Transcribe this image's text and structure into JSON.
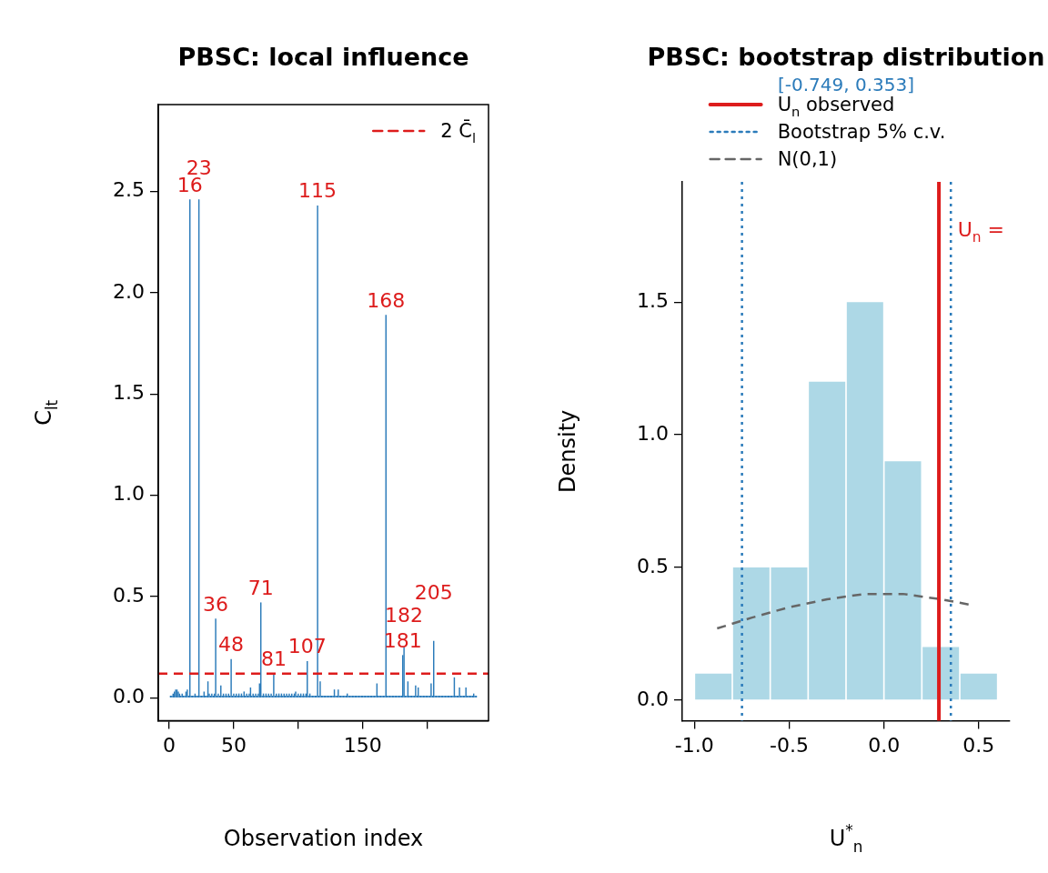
{
  "chart_data": [
    {
      "type": "bar",
      "title": "PBSC: local influence",
      "xlabel": "Observation index",
      "ylabel": "C$_{lt}$",
      "color": "#2b7bba",
      "x": [
        1,
        2,
        3,
        4,
        5,
        6,
        7,
        8,
        9,
        10,
        11,
        12,
        13,
        14,
        15,
        16,
        17,
        18,
        19,
        20,
        21,
        22,
        23,
        24,
        25,
        26,
        27,
        28,
        29,
        30,
        31,
        32,
        33,
        34,
        35,
        36,
        37,
        38,
        39,
        40,
        41,
        42,
        43,
        44,
        45,
        46,
        47,
        48,
        49,
        50,
        51,
        52,
        53,
        54,
        55,
        56,
        57,
        58,
        59,
        60,
        61,
        62,
        63,
        64,
        65,
        66,
        67,
        68,
        69,
        70,
        71,
        72,
        73,
        74,
        75,
        76,
        77,
        78,
        79,
        80,
        81,
        82,
        83,
        84,
        85,
        86,
        87,
        88,
        89,
        90,
        91,
        92,
        93,
        94,
        95,
        96,
        97,
        98,
        99,
        100,
        101,
        102,
        103,
        104,
        105,
        106,
        107,
        108,
        109,
        110,
        111,
        112,
        113,
        114,
        115,
        116,
        117,
        118,
        119,
        120,
        121,
        122,
        123,
        124,
        125,
        126,
        127,
        128,
        129,
        130,
        131,
        132,
        133,
        134,
        135,
        136,
        137,
        138,
        139,
        140,
        141,
        142,
        143,
        144,
        145,
        146,
        147,
        148,
        149,
        150,
        151,
        152,
        153,
        154,
        155,
        156,
        157,
        158,
        159,
        160,
        161,
        162,
        163,
        164,
        165,
        166,
        167,
        168,
        169,
        170,
        171,
        172,
        173,
        174,
        175,
        176,
        177,
        178,
        179,
        180,
        181,
        182,
        183,
        184,
        185,
        186,
        187,
        188,
        189,
        190,
        191,
        192,
        193,
        194,
        195,
        196,
        197,
        198,
        199,
        200,
        201,
        202,
        203,
        204,
        205,
        206,
        207,
        208,
        209,
        210,
        211,
        212,
        213,
        214,
        215,
        216,
        217,
        218,
        219,
        220,
        221,
        222,
        223,
        224,
        225,
        226,
        227,
        228,
        229,
        230,
        231,
        232,
        233,
        234,
        235,
        236,
        237,
        238
      ],
      "values": [
        0.01,
        0.01,
        0.02,
        0.03,
        0.04,
        0.04,
        0.03,
        0.02,
        0.01,
        0.02,
        0.01,
        0.01,
        0.03,
        0.04,
        0.01,
        2.46,
        0.01,
        0.01,
        0.01,
        0.02,
        0.01,
        0.01,
        2.46,
        0.01,
        0.01,
        0.01,
        0.03,
        0.01,
        0.01,
        0.08,
        0.02,
        0.01,
        0.02,
        0.01,
        0.02,
        0.39,
        0.01,
        0.02,
        0.01,
        0.06,
        0.01,
        0.02,
        0.01,
        0.02,
        0.01,
        0.02,
        0.01,
        0.19,
        0.01,
        0.02,
        0.01,
        0.02,
        0.01,
        0.02,
        0.01,
        0.02,
        0.01,
        0.03,
        0.01,
        0.02,
        0.01,
        0.02,
        0.05,
        0.01,
        0.02,
        0.01,
        0.02,
        0.01,
        0.02,
        0.07,
        0.47,
        0.01,
        0.02,
        0.01,
        0.02,
        0.01,
        0.02,
        0.01,
        0.02,
        0.01,
        0.12,
        0.01,
        0.02,
        0.01,
        0.02,
        0.01,
        0.02,
        0.01,
        0.02,
        0.01,
        0.02,
        0.01,
        0.02,
        0.01,
        0.02,
        0.01,
        0.02,
        0.03,
        0.01,
        0.02,
        0.01,
        0.02,
        0.01,
        0.02,
        0.01,
        0.02,
        0.18,
        0.01,
        0.02,
        0.01,
        0.01,
        0.01,
        0.01,
        0.01,
        2.43,
        0.01,
        0.08,
        0.01,
        0.01,
        0.01,
        0.01,
        0.01,
        0.01,
        0.01,
        0.01,
        0.01,
        0.01,
        0.04,
        0.01,
        0.01,
        0.04,
        0.01,
        0.01,
        0.01,
        0.01,
        0.01,
        0.01,
        0.02,
        0.01,
        0.01,
        0.01,
        0.01,
        0.01,
        0.01,
        0.01,
        0.01,
        0.01,
        0.01,
        0.01,
        0.01,
        0.01,
        0.01,
        0.01,
        0.01,
        0.01,
        0.01,
        0.01,
        0.01,
        0.01,
        0.01,
        0.07,
        0.01,
        0.01,
        0.01,
        0.01,
        0.01,
        0.01,
        1.89,
        0.01,
        0.01,
        0.01,
        0.01,
        0.01,
        0.01,
        0.01,
        0.01,
        0.01,
        0.01,
        0.01,
        0.01,
        0.21,
        0.25,
        0.01,
        0.01,
        0.08,
        0.01,
        0.01,
        0.01,
        0.01,
        0.01,
        0.06,
        0.01,
        0.05,
        0.01,
        0.01,
        0.01,
        0.01,
        0.01,
        0.01,
        0.01,
        0.01,
        0.01,
        0.07,
        0.01,
        0.28,
        0.01,
        0.01,
        0.01,
        0.01,
        0.01,
        0.01,
        0.01,
        0.01,
        0.01,
        0.01,
        0.01,
        0.01,
        0.01,
        0.01,
        0.01,
        0.1,
        0.01,
        0.01,
        0.01,
        0.05,
        0.01,
        0.01,
        0.01,
        0.01,
        0.05,
        0.01,
        0.01,
        0.01,
        0.01,
        0.01,
        0.02,
        0.01,
        0.01
      ],
      "xlim": [
        -8.5,
        247.5
      ],
      "xticks": [
        0,
        50,
        {
          "value": 100,
          "label": null
        },
        150,
        {
          "value": 200,
          "label": null
        }
      ],
      "ylim": [
        -0.113,
        2.93
      ],
      "yticks": [
        {
          "value": 0,
          "label": "0.0"
        },
        0.5,
        {
          "value": 1,
          "label": "1.0"
        },
        1.5,
        {
          "value": 2,
          "label": "2.0"
        },
        2.5
      ],
      "ref_lines": [
        {
          "axis": "y",
          "value": 0.12,
          "label": "2 C̄$_{l}$",
          "color": "#dd1c1c",
          "line_style": "dashed"
        }
      ],
      "annotations": [
        {
          "text": "16",
          "x": 16,
          "y": 2.46
        },
        {
          "text": "23",
          "x": 23,
          "y": 2.46
        },
        {
          "text": "36",
          "x": 36,
          "y": 0.39
        },
        {
          "text": "48",
          "x": 48,
          "y": 0.19
        },
        {
          "text": "71",
          "x": 71,
          "y": 0.47
        },
        {
          "text": "81",
          "x": 81,
          "y": 0.12
        },
        {
          "text": "107",
          "x": 107,
          "y": 0.18
        },
        {
          "text": "115",
          "x": 115,
          "y": 2.43
        },
        {
          "text": "168",
          "x": 168,
          "y": 1.89
        },
        {
          "text": "181",
          "x": 181,
          "y": 0.21
        },
        {
          "text": "182",
          "x": 182,
          "y": 0.25
        },
        {
          "text": "205",
          "x": 205,
          "y": 0.28
        }
      ],
      "legend": "top right",
      "grid": false
    },
    {
      "type": "histogram",
      "title": "PBSC: bootstrap distribution",
      "subtitle": "[-0.749, 0.353]",
      "xlabel": "U$^{*}$$_{n}$",
      "ylabel": "Density",
      "color": "#add8e6",
      "bins": [
        -1.0,
        -0.8,
        -0.6,
        -0.4,
        -0.2,
        0.0,
        0.2,
        0.4,
        0.6
      ],
      "values": [
        0.1,
        0.5,
        0.5,
        1.2,
        1.5,
        0.9,
        0.2,
        0.1
      ],
      "series": [
        {
          "type": "line",
          "name": "N(0,1)",
          "color": "#666666",
          "line_style": "dashed",
          "x": [
            -0.88,
            -0.7,
            -0.5,
            -0.3,
            -0.1,
            0.0,
            0.1,
            0.3,
            0.45
          ],
          "values": [
            0.27,
            0.31,
            0.35,
            0.38,
            0.4,
            0.4,
            0.4,
            0.38,
            0.36
          ]
        }
      ],
      "xlim": [
        -1.064,
        0.664
      ],
      "xticks": [
        {
          "value": -1,
          "label": "-1.0"
        },
        -0.5,
        {
          "value": 0,
          "label": "0.0"
        },
        0.5
      ],
      "ylim": [
        -0.078,
        1.953
      ],
      "yticks": [
        {
          "value": 0,
          "label": "0.0"
        },
        0.5,
        {
          "value": 1,
          "label": "1.0"
        },
        1.5
      ],
      "ref_lines": [
        {
          "axis": "x",
          "value": 0.29,
          "label": "U$_{n}$ observed",
          "color": "#dd1c1c",
          "line_style": "solid"
        },
        {
          "axis": "x",
          "value": -0.749,
          "label": "Bootstrap 5% c.v.",
          "color": "#2b7bba",
          "line_style": "dotted"
        },
        {
          "axis": "x",
          "value": 0.353,
          "color": "#2b7bba",
          "line_style": "dotted"
        }
      ],
      "annotations": [
        "U$_{n}$ ="
      ],
      "legend": "top",
      "grid": false
    }
  ]
}
